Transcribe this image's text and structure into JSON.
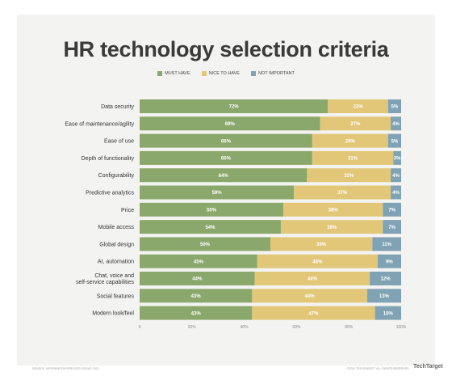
{
  "chart_data": {
    "type": "bar",
    "orientation": "horizontal",
    "stacked": true,
    "title": "HR technology selection criteria",
    "categories": [
      "Data security",
      "Ease of maintenance/agility",
      "Ease of use",
      "Depth of functionality",
      "Configurability",
      "Predictive analytics",
      "Price",
      "Mobile access",
      "Global design",
      "AI, automation",
      "Chat, voice and self-service capabilities",
      "Social features",
      "Modern look/feel"
    ],
    "series": [
      {
        "name": "MUST HAVE",
        "color": "#8aa86c",
        "values": [
          72,
          69,
          66,
          66,
          64,
          59,
          55,
          54,
          50,
          45,
          44,
          43,
          43
        ]
      },
      {
        "name": "NICE TO HAVE",
        "color": "#e2c779",
        "values": [
          23,
          27,
          29,
          31,
          32,
          37,
          38,
          39,
          39,
          46,
          44,
          44,
          47
        ]
      },
      {
        "name": "NOT IMPORTANT",
        "color": "#7fa3b5",
        "values": [
          5,
          4,
          5,
          3,
          4,
          4,
          7,
          7,
          11,
          9,
          12,
          13,
          10
        ]
      }
    ],
    "data_labels": [
      [
        "72%",
        "69%",
        "66%",
        "66%",
        "64%",
        "59%",
        "55%",
        "54%",
        "50%",
        "45%",
        "44%",
        "43%",
        "43%"
      ],
      [
        "23%",
        "27%",
        "29%",
        "31%",
        "32%",
        "37%",
        "38%",
        "39%",
        "39%",
        "46%",
        "44%",
        "44%",
        "47%"
      ],
      [
        "5%",
        "4%",
        "5%",
        "3%",
        "4%",
        "4%",
        "7%",
        "7%",
        "11%",
        "9%",
        "12%",
        "13%",
        "10%"
      ]
    ],
    "xticks": [
      "0",
      "20%",
      "40%",
      "60%",
      "80%",
      "100%"
    ],
    "xlim": [
      0,
      100
    ],
    "legend_position": "top-center"
  },
  "footer": {
    "source": "SOURCE: INFORMATION SERVICES GROUP, 2021",
    "rights": "©2021 TECHTARGET. ALL RIGHTS RESERVED.",
    "brand": "TechTarget"
  }
}
